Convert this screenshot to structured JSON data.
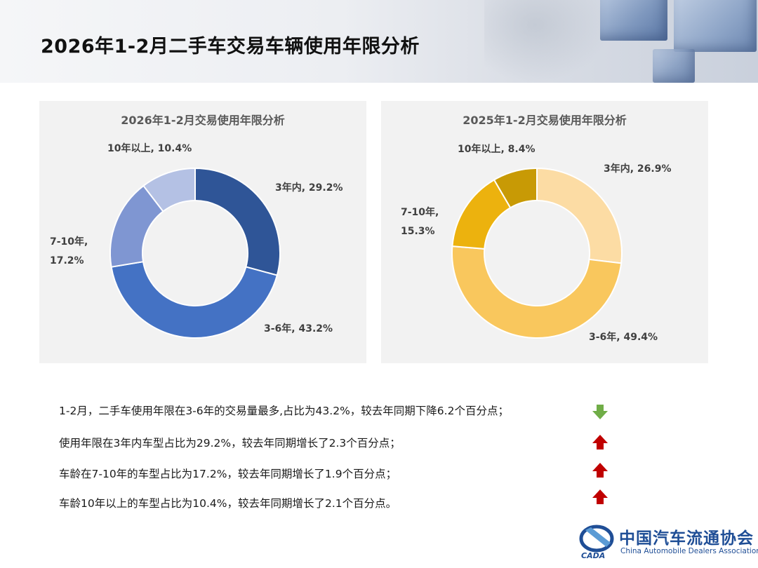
{
  "header": {
    "title": "2026年1-2月二手车交易车辆使用年限分析"
  },
  "chart_data": [
    {
      "type": "pie",
      "title": "2026年1-2月交易使用年限分析",
      "categories": [
        "3年内",
        "3-6年",
        "7-10年",
        "10年以上"
      ],
      "values": [
        29.2,
        43.2,
        17.2,
        10.4
      ],
      "labels": [
        "3年内, 29.2%",
        "3-6年, 43.2%",
        "7-10年,|17.2%",
        "10年以上, 10.4%"
      ],
      "colors": [
        "#2f5597",
        "#4472c4",
        "#7f96d2",
        "#b4c1e4"
      ]
    },
    {
      "type": "pie",
      "title": "2025年1-2月交易使用年限分析",
      "categories": [
        "3年内",
        "3-6年",
        "7-10年",
        "10年以上"
      ],
      "values": [
        26.9,
        49.4,
        15.3,
        8.4
      ],
      "labels": [
        "3年内, 26.9%",
        "3-6年, 49.4%",
        "7-10年,|15.3%",
        "10年以上, 8.4%"
      ],
      "colors": [
        "#fcdca4",
        "#f9c75d",
        "#ecb20e",
        "#c89a05"
      ]
    }
  ],
  "notes": [
    {
      "text": "1-2月，二手车使用年限在3-6年的交易量最多,占比为43.2%，较去年同期下降6.2个百分点；",
      "trend": "down",
      "color": "#70ad47"
    },
    {
      "text": "使用年限在3年内车型占比为29.2%，较去年同期增长了2.3个百分点；",
      "trend": "up",
      "color": "#c00000"
    },
    {
      "text": "车龄在7-10年的车型占比为17.2%，较去年同期增长了1.9个百分点；",
      "trend": "up",
      "color": "#c00000"
    },
    {
      "text": "车龄10年以上的车型占比为10.4%，较去年同期增长了2.1个百分点。",
      "trend": "up",
      "color": "#c00000"
    }
  ],
  "logo": {
    "cn": "中国汽车流通协会",
    "en": "China Automobile Dealers Association",
    "mark": "CADA",
    "color": "#1f4e96"
  }
}
